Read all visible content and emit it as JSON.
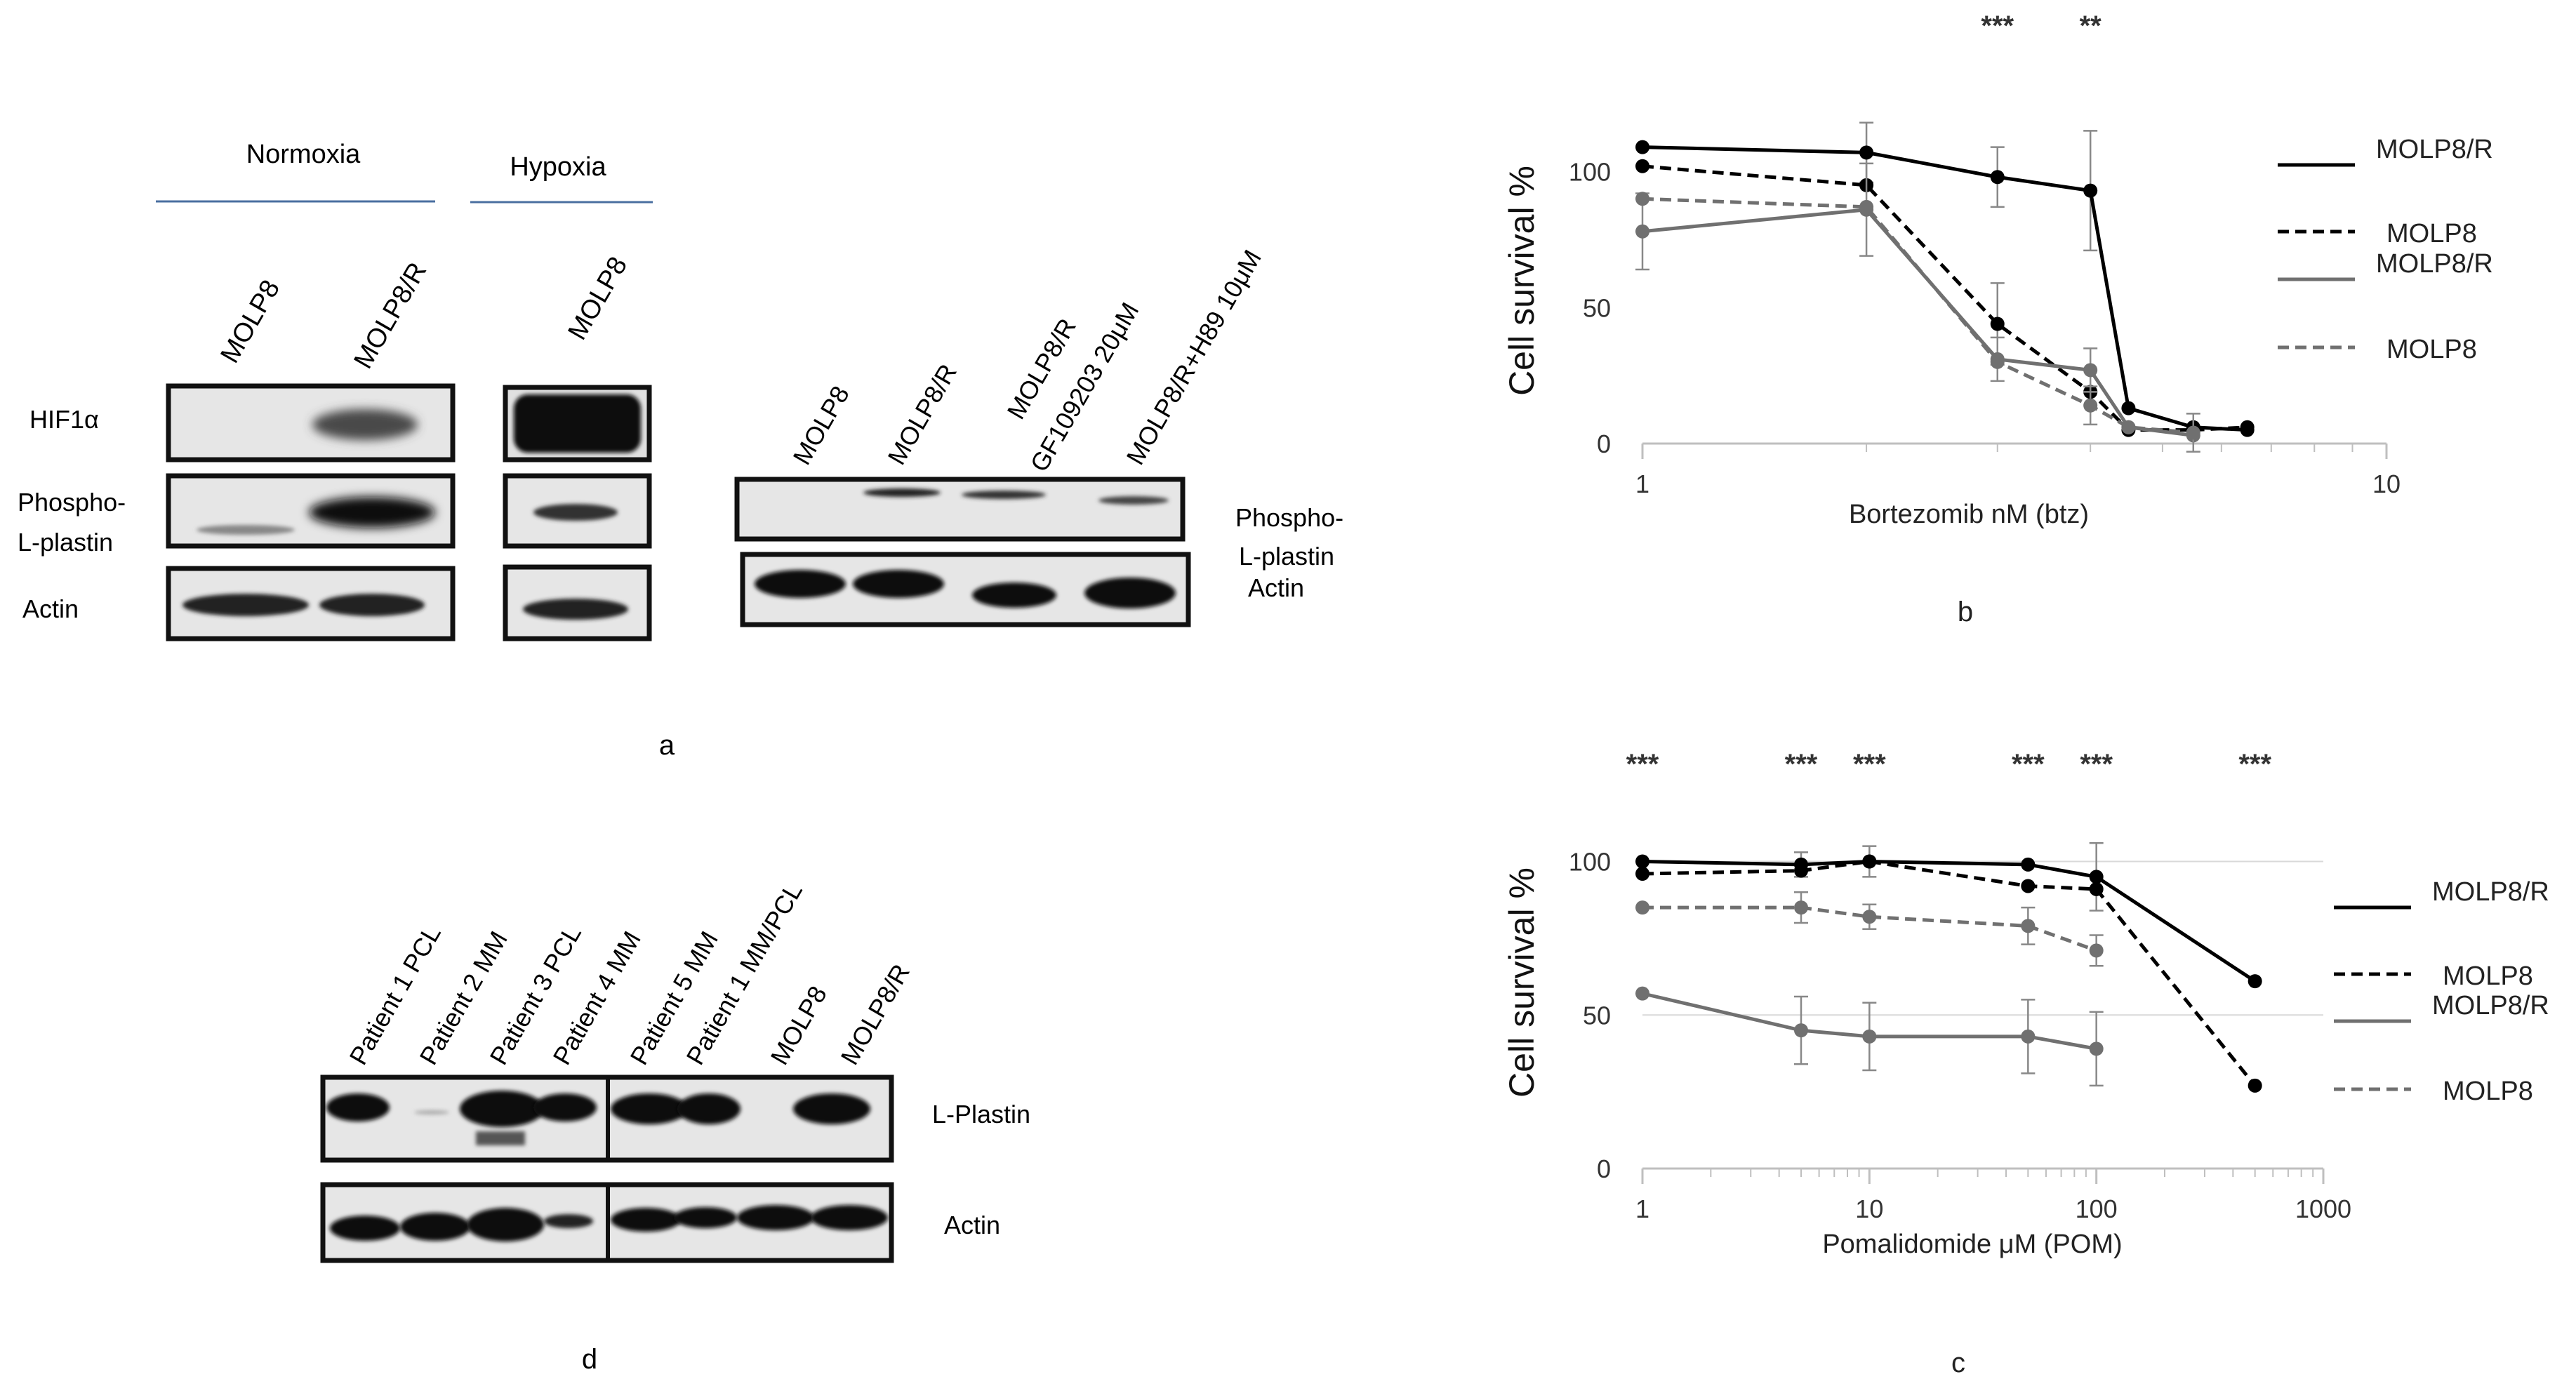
{
  "panel_a": {
    "group_labels": [
      "Normoxia",
      "Hypoxia"
    ],
    "lane_labels_left": [
      "MOLP8",
      "MOLP8/R",
      "MOLP8"
    ],
    "row_labels_left": [
      "HIF1α",
      "Phospho-",
      "L-plastin",
      "Actin"
    ],
    "lane_labels_right": [
      "MOLP8",
      "MOLP8/R",
      "MOLP8/R",
      "GF109203 20μM",
      "MOLP8/R+H89 10μM"
    ],
    "row_labels_right": [
      "Phospho-",
      "L-plastin",
      "Actin"
    ],
    "letter": "a"
  },
  "panel_d": {
    "lane_labels": [
      "Patient 1 PCL",
      "Patient 2 MM",
      "Patient 3 PCL",
      "Patient 4 MM",
      "Patient 5 MM",
      "Patient 1 MM/PCL",
      "MOLP8",
      "MOLP8/R"
    ],
    "row_labels": [
      "L-Plastin",
      "Actin"
    ],
    "letter": "d"
  },
  "chart_data": [
    {
      "type": "line",
      "panel_letter": "b",
      "xlabel": "Bortezomib nM (btz)",
      "ylabel": "Cell survival %",
      "x_scale": "log",
      "xlim": [
        1,
        10
      ],
      "ylim": [
        0,
        120
      ],
      "x_tick_labels": [
        "1",
        "10"
      ],
      "y_tick_labels": [
        "0",
        "50",
        "100"
      ],
      "legend_position": "right",
      "annotations": [
        {
          "text": "***",
          "x": 3
        },
        {
          "text": "**",
          "x": 4
        }
      ],
      "series": [
        {
          "name": "MOLP8/R",
          "color": "#000000",
          "dashed": false,
          "x": [
            1,
            2,
            3,
            4,
            4.5,
            5.5,
            6.5
          ],
          "y": [
            109,
            107,
            98,
            93,
            13,
            6,
            5
          ],
          "err": [
            0,
            11,
            11,
            22,
            0,
            0,
            0
          ]
        },
        {
          "name": "MOLP8",
          "color": "#000000",
          "dashed": true,
          "x": [
            1,
            2,
            3,
            4,
            4.5,
            5.5,
            6.5
          ],
          "y": [
            102,
            95,
            44,
            19,
            5,
            5,
            6
          ],
          "err": [
            0,
            0,
            15,
            0,
            0,
            0,
            0
          ]
        },
        {
          "name": "MOLP8/R",
          "color": "#707070",
          "dashed": false,
          "x": [
            1,
            2,
            3,
            4,
            4.5,
            5.5
          ],
          "y": [
            78,
            86,
            31,
            27,
            6,
            3
          ],
          "err": [
            14,
            17,
            8,
            8,
            0,
            0
          ]
        },
        {
          "name": "MOLP8",
          "color": "#707070",
          "dashed": true,
          "x": [
            1,
            2,
            3,
            4,
            4.5,
            5.5
          ],
          "y": [
            90,
            87,
            30,
            14,
            6,
            4
          ],
          "err": [
            0,
            0,
            0,
            7,
            0,
            7
          ]
        }
      ]
    },
    {
      "type": "line",
      "panel_letter": "c",
      "xlabel": "Pomalidomide μM (POM)",
      "ylabel": "Cell survival %",
      "x_scale": "log",
      "xlim": [
        1,
        1000
      ],
      "ylim": [
        0,
        120
      ],
      "x_tick_labels": [
        "1",
        "10",
        "100",
        "1000"
      ],
      "y_tick_labels": [
        "0",
        "50",
        "100"
      ],
      "legend_position": "right",
      "annotations": [
        {
          "text": "***",
          "x": 1
        },
        {
          "text": "***",
          "x": 5
        },
        {
          "text": "***",
          "x": 10
        },
        {
          "text": "***",
          "x": 50
        },
        {
          "text": "***",
          "x": 100
        },
        {
          "text": "***",
          "x": 500
        }
      ],
      "series": [
        {
          "name": "MOLP8/R",
          "color": "#000000",
          "dashed": false,
          "x": [
            1,
            5,
            10,
            50,
            100,
            500
          ],
          "y": [
            100,
            99,
            100,
            99,
            95,
            61
          ],
          "err": [
            0,
            4,
            5,
            0,
            11,
            0
          ]
        },
        {
          "name": "MOLP8",
          "color": "#000000",
          "dashed": true,
          "x": [
            1,
            5,
            10,
            50,
            100,
            500
          ],
          "y": [
            96,
            97,
            100,
            92,
            91,
            27
          ],
          "err": [
            0,
            0,
            0,
            0,
            0,
            0
          ]
        },
        {
          "name": "MOLP8/R",
          "color": "#707070",
          "dashed": false,
          "x": [
            1,
            5,
            10,
            50,
            100
          ],
          "y": [
            57,
            45,
            43,
            43,
            39
          ],
          "err": [
            0,
            11,
            11,
            12,
            12
          ]
        },
        {
          "name": "MOLP8",
          "color": "#707070",
          "dashed": true,
          "x": [
            1,
            5,
            10,
            50,
            100
          ],
          "y": [
            85,
            85,
            82,
            79,
            71
          ],
          "err": [
            0,
            5,
            4,
            6,
            5
          ]
        }
      ]
    }
  ]
}
